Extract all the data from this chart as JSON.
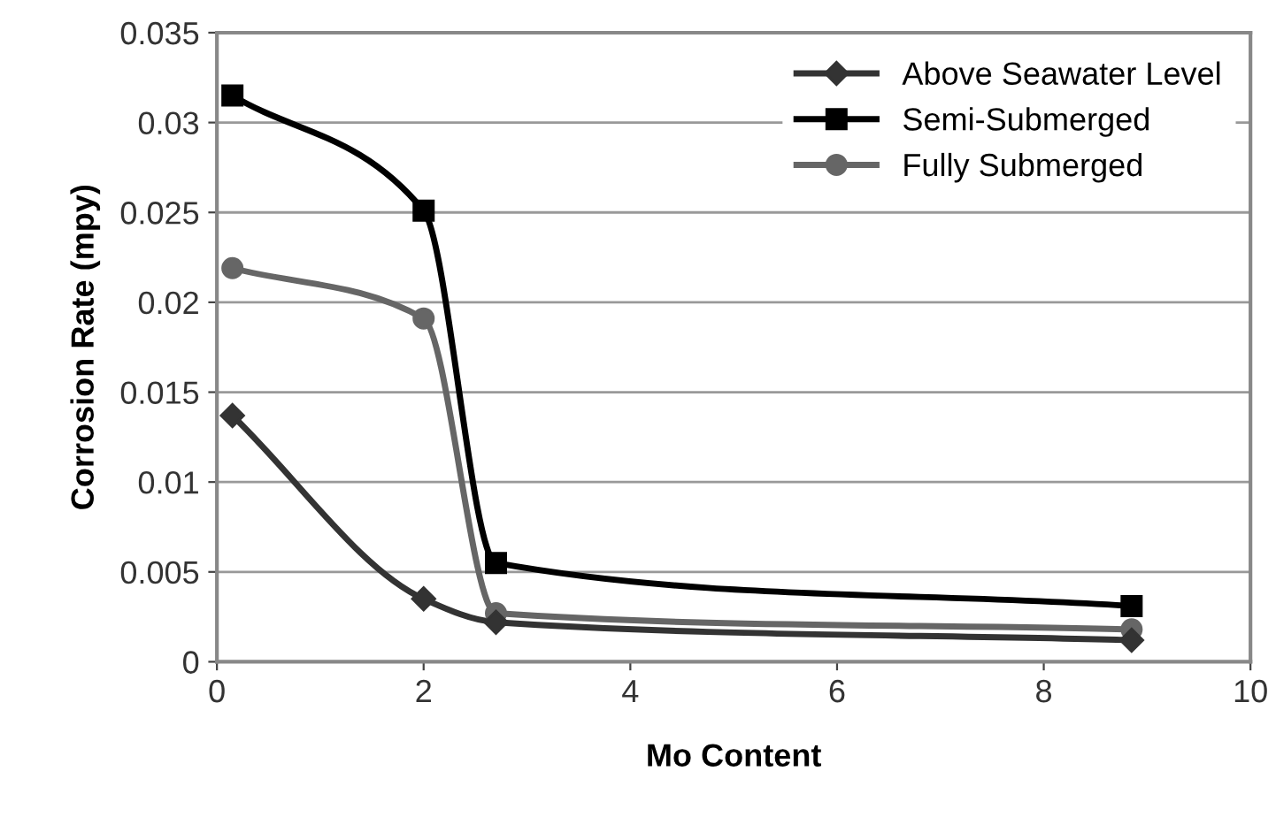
{
  "chart_data": {
    "type": "line",
    "xlabel": "Mo Content",
    "ylabel": "Corrosion Rate (mpy)",
    "xlim": [
      0,
      10
    ],
    "xticks": [
      0,
      2,
      4,
      6,
      8,
      10
    ],
    "ylim": [
      0,
      0.035
    ],
    "yticks": [
      {
        "value": 0,
        "label": "0"
      },
      {
        "value": 0.005,
        "label": "0.005"
      },
      {
        "value": 0.01,
        "label": "0.01"
      },
      {
        "value": 0.015,
        "label": "0.015"
      },
      {
        "value": 0.02,
        "label": "0.02"
      },
      {
        "value": 0.025,
        "label": "0.025"
      },
      {
        "value": 0.03,
        "label": "0.03"
      },
      {
        "value": 0.035,
        "label": "0.035"
      }
    ],
    "grid": "y",
    "legend": "top right",
    "series": [
      {
        "name": "Above Seawater Level",
        "color": "#333333",
        "marker": "diamond",
        "x": [
          0.15,
          2.0,
          2.7,
          8.85
        ],
        "values": [
          0.0137,
          0.0035,
          0.0022,
          0.0012
        ]
      },
      {
        "name": "Semi-Submerged",
        "color": "#000000",
        "marker": "square",
        "x": [
          0.15,
          2.0,
          2.7,
          8.85
        ],
        "values": [
          0.0315,
          0.0251,
          0.0055,
          0.0031
        ]
      },
      {
        "name": "Fully Submerged",
        "color": "#666666",
        "marker": "circle",
        "x": [
          0.15,
          2.0,
          2.7,
          8.85
        ],
        "values": [
          0.0219,
          0.0191,
          0.0027,
          0.0018
        ]
      }
    ]
  }
}
